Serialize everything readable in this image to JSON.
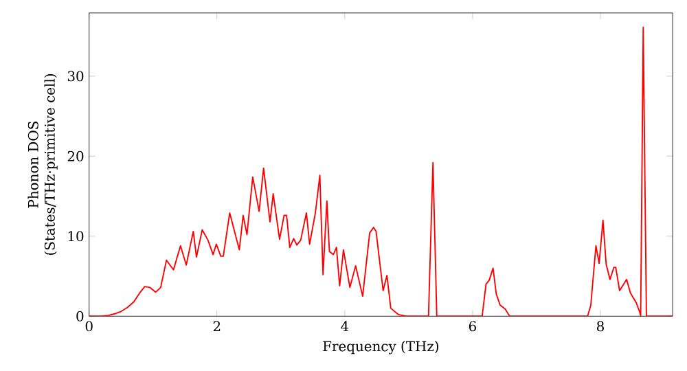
{
  "chart_data": {
    "type": "line",
    "xlabel": "Frequency (THz)",
    "ylabel": "Phonon DOS\n(States/THz·primitive cell)",
    "xlim": [
      0,
      9.13
    ],
    "ylim": [
      0,
      37.9
    ],
    "xticks": [
      0,
      2,
      4,
      6,
      8
    ],
    "yticks": [
      0,
      10,
      20,
      30
    ],
    "grid": false,
    "marker": "none",
    "line_style": "solid",
    "series": [
      {
        "color": "#ff0000",
        "x": [
          0,
          0.2,
          0.3,
          0.4,
          0.5,
          0.6,
          0.7,
          0.8,
          0.87,
          0.95,
          1.04,
          1.12,
          1.21,
          1.32,
          1.43,
          1.52,
          1.63,
          1.68,
          1.77,
          1.86,
          1.94,
          1.99,
          2.06,
          2.1,
          2.2,
          2.35,
          2.41,
          2.47,
          2.56,
          2.66,
          2.73,
          2.83,
          2.88,
          2.98,
          3.05,
          3.09,
          3.14,
          3.2,
          3.25,
          3.31,
          3.4,
          3.45,
          3.54,
          3.61,
          3.66,
          3.72,
          3.76,
          3.82,
          3.87,
          3.92,
          3.98,
          4.08,
          4.17,
          4.28,
          4.39,
          4.45,
          4.49,
          4.6,
          4.66,
          4.72,
          4.84,
          4.96,
          5.31,
          5.38,
          5.44,
          6.15,
          6.21,
          6.26,
          6.32,
          6.37,
          6.43,
          6.51,
          6.58,
          7.8,
          7.85,
          7.93,
          7.98,
          8.04,
          8.09,
          8.15,
          8.21,
          8.24,
          8.3,
          8.41,
          8.47,
          8.56,
          8.62,
          8.63,
          8.67,
          8.72,
          9.13
        ],
        "values": [
          0,
          0,
          0.1,
          0.3,
          0.6,
          1.1,
          1.8,
          3.0,
          3.7,
          3.6,
          3.0,
          3.6,
          7.0,
          5.8,
          8.8,
          6.4,
          10.6,
          7.4,
          10.8,
          9.5,
          7.7,
          9.0,
          7.5,
          7.5,
          12.9,
          8.3,
          12.6,
          10.2,
          17.4,
          13.1,
          18.5,
          11.8,
          15.3,
          9.6,
          12.6,
          12.6,
          8.6,
          9.7,
          8.9,
          9.5,
          12.9,
          9.0,
          12.9,
          17.6,
          5.2,
          14.4,
          8.1,
          7.7,
          8.6,
          3.8,
          8.3,
          3.6,
          6.3,
          2.5,
          10.4,
          11.1,
          10.6,
          3.2,
          5.1,
          1.0,
          0.2,
          0,
          0,
          19.2,
          0,
          0,
          4.0,
          4.5,
          6.0,
          2.8,
          1.4,
          0.9,
          0,
          0,
          1.4,
          8.8,
          6.6,
          12.0,
          6.5,
          4.6,
          6.1,
          6.1,
          3.2,
          4.6,
          2.9,
          1.7,
          0.4,
          0,
          36.1,
          0,
          0
        ]
      }
    ]
  }
}
